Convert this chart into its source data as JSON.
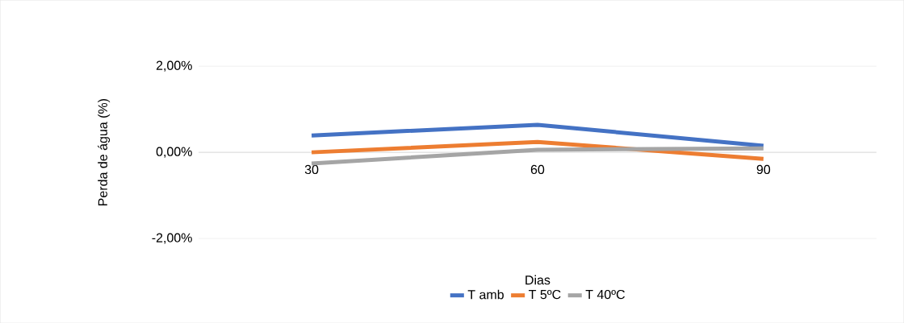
{
  "chart_data": {
    "type": "line",
    "xlabel": "Dias",
    "ylabel": "Perda de água (%)",
    "categories": [
      "30",
      "60",
      "90"
    ],
    "series": [
      {
        "name": "T amb",
        "color": "#4472c4",
        "values": [
          0.39,
          0.64,
          0.15
        ]
      },
      {
        "name": "T 5ºC",
        "color": "#ed7d31",
        "values": [
          0.0,
          0.24,
          -0.15
        ]
      },
      {
        "name": "T 40ºC",
        "color": "#a5a5a5",
        "values": [
          -0.26,
          0.06,
          0.09
        ]
      }
    ],
    "ylim": [
      -2,
      2
    ],
    "yticks": [
      {
        "value": -2,
        "label": "-2,00%"
      },
      {
        "value": 0,
        "label": "0,00%"
      },
      {
        "value": 2,
        "label": "2,00%"
      }
    ],
    "grid": "y",
    "legend": "bottom",
    "marker": "none",
    "line_style": "solid"
  }
}
